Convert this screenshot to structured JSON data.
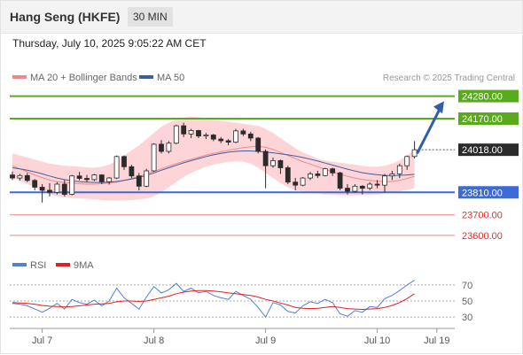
{
  "header": {
    "title": "Hang Seng (HKFE)",
    "timeframe": "30 MIN"
  },
  "datetime": "Thursday, July 10, 2025 9:05:22 AM CET",
  "credit": "Research © 2025 Trading Central",
  "colors": {
    "up_body": "#ffffff",
    "down_body": "#2b2b2b",
    "candle_wick": "#2b2b2b",
    "bollinger_band_fill": "#fdd5d8",
    "ma20": "#f08a8a",
    "ma50": "#3f5d9e",
    "resistance": "#5aaa1e",
    "pivot": "#3a6bd6",
    "support": "#f08080",
    "rsi": "#4f7fe0",
    "rsi_ma": "#e02020",
    "arrow": "#2f5faa",
    "last_price_box": "#2b2b2b"
  },
  "chart_data": [
    {
      "type": "line",
      "subtype": "candlestick",
      "title": "",
      "legend": [
        {
          "name": "MA 20 + Bollinger Bands",
          "color": "#f08a8a"
        },
        {
          "name": "MA 50",
          "color": "#3f5d9e"
        }
      ],
      "legend_position": "top-left",
      "ylim": [
        23530,
        24330
      ],
      "x_ticks": [
        {
          "label": "Jul 7",
          "bar": 4
        },
        {
          "label": "Jul 8",
          "bar": 19
        },
        {
          "label": "Jul 9",
          "bar": 34
        },
        {
          "label": "Jul 10",
          "bar": 49
        },
        {
          "label": "Jul 19",
          "bar": 57
        }
      ],
      "bars_visible": 58,
      "levels": [
        {
          "label": "24280.00",
          "value": 24280,
          "role": "resistance"
        },
        {
          "label": "24170.00",
          "value": 24170,
          "role": "resistance"
        },
        {
          "label": "24018.00",
          "value": 24018,
          "role": "last"
        },
        {
          "label": "23810.00",
          "value": 23810,
          "role": "pivot"
        },
        {
          "label": "23700.00",
          "value": 23700,
          "role": "support"
        },
        {
          "label": "23600.00",
          "value": 23600,
          "role": "support"
        }
      ],
      "forecast_arrow": {
        "from": 24000,
        "to": 24255
      },
      "ohlc": [
        [
          23895,
          23912,
          23870,
          23880
        ],
        [
          23880,
          23900,
          23868,
          23892
        ],
        [
          23892,
          23905,
          23860,
          23868
        ],
        [
          23868,
          23875,
          23820,
          23835
        ],
        [
          23835,
          23850,
          23760,
          23820
        ],
        [
          23820,
          23855,
          23790,
          23810
        ],
        [
          23810,
          23860,
          23800,
          23850
        ],
        [
          23850,
          23870,
          23790,
          23800
        ],
        [
          23800,
          23895,
          23795,
          23890
        ],
        [
          23890,
          23910,
          23868,
          23878
        ],
        [
          23878,
          23895,
          23860,
          23872
        ],
        [
          23872,
          23900,
          23865,
          23895
        ],
        [
          23895,
          23898,
          23850,
          23862
        ],
        [
          23862,
          23885,
          23848,
          23880
        ],
        [
          23880,
          23990,
          23875,
          23985
        ],
        [
          23985,
          23990,
          23920,
          23935
        ],
        [
          23935,
          23945,
          23880,
          23890
        ],
        [
          23890,
          23905,
          23820,
          23840
        ],
        [
          23840,
          23925,
          23835,
          23915
        ],
        [
          23915,
          24050,
          23910,
          24045
        ],
        [
          24045,
          24065,
          24000,
          24010
        ],
        [
          24010,
          24060,
          24000,
          24050
        ],
        [
          24050,
          24140,
          24045,
          24135
        ],
        [
          24135,
          24150,
          24080,
          24095
        ],
        [
          24095,
          24120,
          24075,
          24112
        ],
        [
          24112,
          24115,
          24075,
          24085
        ],
        [
          24085,
          24100,
          24070,
          24090
        ],
        [
          24090,
          24095,
          24060,
          24070
        ],
        [
          24070,
          24080,
          24050,
          24062
        ],
        [
          24062,
          24070,
          24040,
          24055
        ],
        [
          24055,
          24120,
          24050,
          24110
        ],
        [
          24110,
          24120,
          24085,
          24095
        ],
        [
          24095,
          24105,
          24060,
          24075
        ],
        [
          24075,
          24080,
          24000,
          24010
        ],
        [
          24010,
          24020,
          23830,
          23940
        ],
        [
          23940,
          23980,
          23930,
          23965
        ],
        [
          23965,
          23970,
          23900,
          23930
        ],
        [
          23930,
          23940,
          23850,
          23860
        ],
        [
          23860,
          23880,
          23820,
          23845
        ],
        [
          23845,
          23885,
          23840,
          23880
        ],
        [
          23880,
          23910,
          23870,
          23900
        ],
        [
          23900,
          23915,
          23880,
          23892
        ],
        [
          23892,
          23930,
          23888,
          23925
        ],
        [
          23925,
          23930,
          23890,
          23905
        ],
        [
          23905,
          23910,
          23820,
          23830
        ],
        [
          23830,
          23850,
          23800,
          23815
        ],
        [
          23815,
          23850,
          23810,
          23840
        ],
        [
          23840,
          23845,
          23800,
          23830
        ],
        [
          23830,
          23860,
          23820,
          23850
        ],
        [
          23850,
          23870,
          23830,
          23845
        ],
        [
          23845,
          23900,
          23810,
          23890
        ],
        [
          23890,
          23915,
          23870,
          23900
        ],
        [
          23900,
          23950,
          23880,
          23940
        ],
        [
          23940,
          23990,
          23920,
          23985
        ],
        [
          23985,
          24060,
          23975,
          24018
        ]
      ],
      "ma20": [
        23940,
        23925,
        23910,
        23895,
        23882,
        23870,
        23862,
        23858,
        23855,
        23852,
        23850,
        23850,
        23852,
        23855,
        23860,
        23868,
        23878,
        23888,
        23900,
        23912,
        23925,
        23938,
        23950,
        23962,
        23972,
        23982,
        23992,
        24000,
        24008,
        24015,
        24022,
        24028,
        24033,
        24035,
        24030,
        24020,
        24005,
        23990,
        23975,
        23960,
        23948,
        23935,
        23922,
        23910,
        23898,
        23888,
        23880,
        23873,
        23868,
        23865,
        23862,
        23863,
        23868,
        23878,
        23888
      ],
      "bb_upper": [
        24000,
        23990,
        23980,
        23970,
        23960,
        23950,
        23945,
        23940,
        23938,
        23935,
        23932,
        23930,
        23935,
        23945,
        23965,
        23990,
        24015,
        24040,
        24070,
        24100,
        24130,
        24150,
        24165,
        24175,
        24180,
        24178,
        24172,
        24165,
        24160,
        24155,
        24150,
        24145,
        24140,
        24135,
        24120,
        24100,
        24075,
        24050,
        24025,
        24005,
        23990,
        23975,
        23965,
        23960,
        23955,
        23950,
        23945,
        23940,
        23935,
        23935,
        23940,
        23950,
        23965,
        23990,
        24020
      ],
      "bb_lower": [
        23880,
        23865,
        23850,
        23835,
        23815,
        23800,
        23790,
        23785,
        23782,
        23780,
        23778,
        23776,
        23772,
        23770,
        23770,
        23770,
        23772,
        23775,
        23780,
        23790,
        23810,
        23835,
        23860,
        23885,
        23905,
        23920,
        23935,
        23945,
        23952,
        23958,
        23962,
        23960,
        23950,
        23930,
        23905,
        23880,
        23855,
        23835,
        23820,
        23812,
        23808,
        23805,
        23800,
        23798,
        23796,
        23795,
        23795,
        23796,
        23798,
        23800,
        23805,
        23810,
        23815,
        23822,
        23830
      ],
      "ma50": [
        23930,
        23925,
        23918,
        23910,
        23900,
        23890,
        23880,
        23872,
        23866,
        23862,
        23860,
        23858,
        23858,
        23860,
        23863,
        23868,
        23875,
        23883,
        23893,
        23905,
        23918,
        23930,
        23942,
        23954,
        23965,
        23975,
        23985,
        23993,
        24000,
        24006,
        24010,
        24012,
        24012,
        24010,
        24007,
        24003,
        23998,
        23993,
        23987,
        23980,
        23972,
        23963,
        23953,
        23943,
        23933,
        23923,
        23914,
        23906,
        23900,
        23896,
        23893,
        23892,
        23893,
        23895,
        23898
      ]
    },
    {
      "type": "line",
      "title": "",
      "legend": [
        {
          "name": "RSI",
          "color": "#4f7fe0"
        },
        {
          "name": "9MA",
          "color": "#e02020"
        }
      ],
      "legend_position": "top-left",
      "ylim": [
        18,
        82
      ],
      "y_ticks": [
        70,
        50,
        30
      ],
      "series": [
        {
          "name": "RSI",
          "values": [
            47,
            46,
            44,
            40,
            36,
            41,
            47,
            40,
            52,
            48,
            46,
            51,
            44,
            50,
            66,
            54,
            47,
            40,
            55,
            68,
            60,
            64,
            72,
            62,
            66,
            60,
            62,
            57,
            54,
            52,
            62,
            57,
            52,
            42,
            30,
            48,
            45,
            37,
            35,
            44,
            49,
            47,
            52,
            48,
            34,
            31,
            38,
            36,
            43,
            42,
            53,
            57,
            63,
            70,
            76
          ]
        },
        {
          "name": "9MA",
          "values": [
            48,
            47.5,
            47,
            46,
            44.5,
            43.5,
            43,
            42.5,
            43,
            44,
            45,
            46,
            46.5,
            47,
            49,
            50,
            50,
            49.5,
            50,
            52,
            54,
            56,
            59,
            61,
            62.5,
            63,
            63,
            62.5,
            61.5,
            60,
            59,
            58,
            57,
            55,
            52,
            50,
            47.5,
            45,
            42,
            41,
            40.5,
            41,
            42,
            43,
            42,
            40.5,
            40,
            39.5,
            40,
            40.5,
            42,
            44.5,
            48,
            53,
            59
          ]
        }
      ]
    }
  ]
}
